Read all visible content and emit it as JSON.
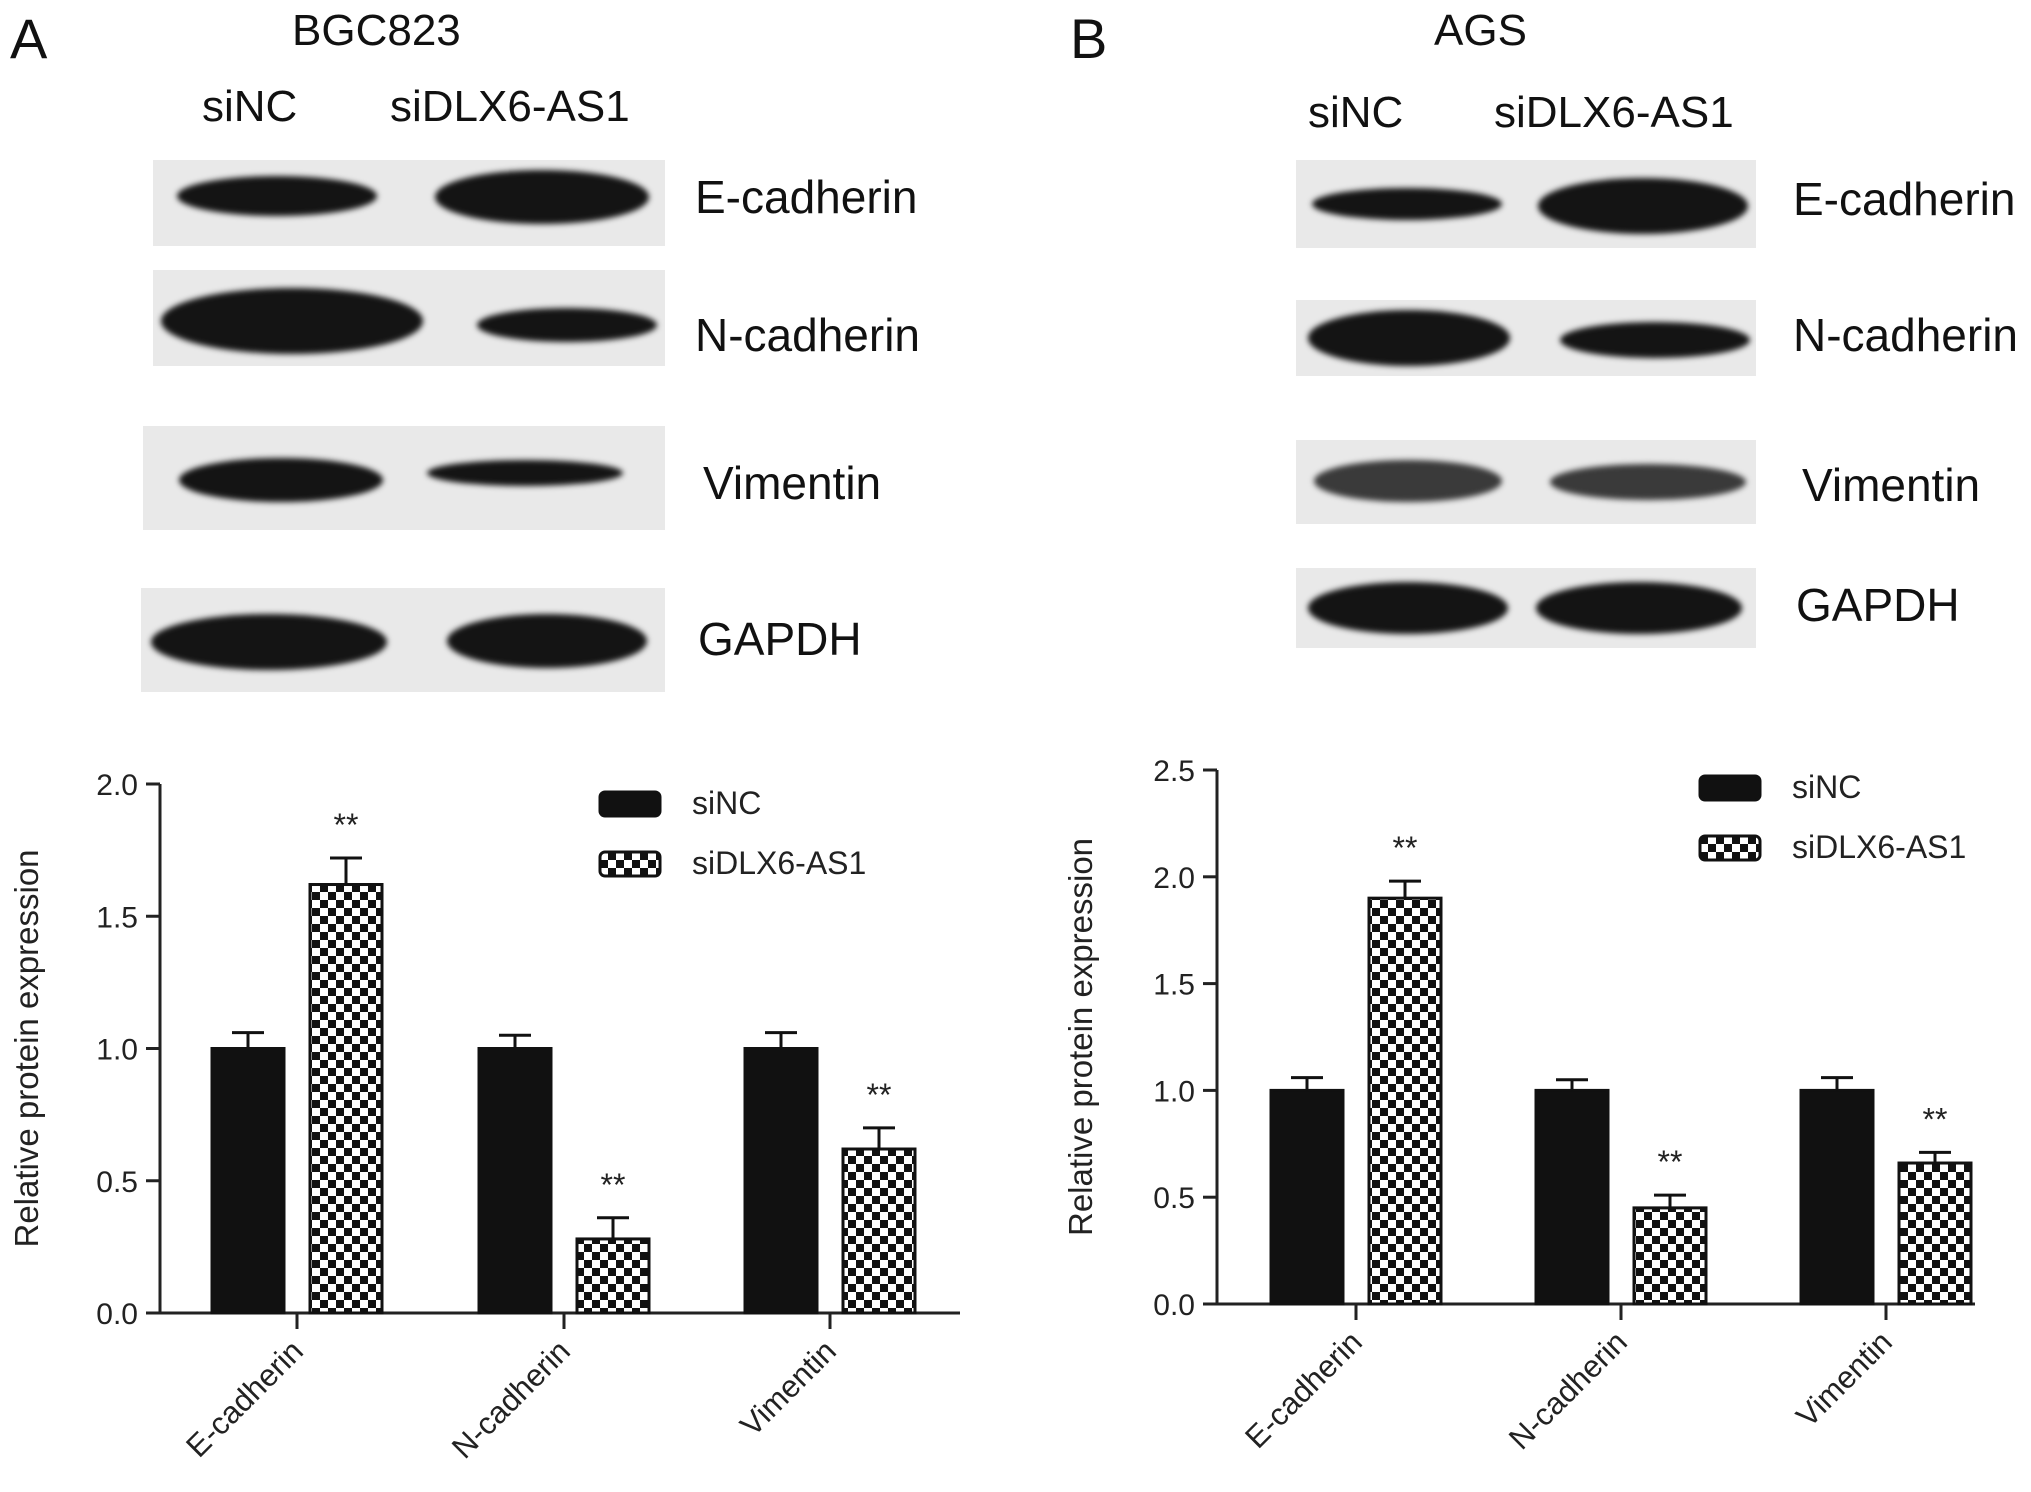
{
  "panels": [
    {
      "label": "A",
      "cell_line": "BGC823",
      "lanes": [
        "siNC",
        "siDLX6-AS1"
      ],
      "blots": [
        {
          "protein": "E-cadherin"
        },
        {
          "protein": "N-cadherin"
        },
        {
          "protein": "Vimentin"
        },
        {
          "protein": "GAPDH"
        }
      ]
    },
    {
      "label": "B",
      "cell_line": "AGS",
      "lanes": [
        "siNC",
        "siDLX6-AS1"
      ],
      "blots": [
        {
          "protein": "E-cadherin"
        },
        {
          "protein": "N-cadherin"
        },
        {
          "protein": "Vimentin"
        },
        {
          "protein": "GAPDH"
        }
      ]
    }
  ],
  "chart_data": [
    {
      "type": "bar",
      "ylabel": "Relative protein expression",
      "ylim": [
        0,
        2.0
      ],
      "yticks": [
        "0.0",
        "0.5",
        "1.0",
        "1.5",
        "2.0"
      ],
      "categories": [
        "E-cadherin",
        "N-cadherin",
        "Vimentin"
      ],
      "legend_placement": "top-right",
      "series": [
        {
          "name": "siNC",
          "values": [
            1.0,
            1.0,
            1.0
          ],
          "errors": [
            0.06,
            0.05,
            0.06
          ],
          "pattern": "solid"
        },
        {
          "name": "siDLX6-AS1",
          "values": [
            1.62,
            0.28,
            0.62
          ],
          "errors": [
            0.1,
            0.08,
            0.08
          ],
          "pattern": "checker"
        }
      ],
      "annotations": [
        {
          "series": 1,
          "category": 0,
          "text": "**"
        },
        {
          "series": 1,
          "category": 1,
          "text": "**"
        },
        {
          "series": 1,
          "category": 2,
          "text": "**"
        }
      ]
    },
    {
      "type": "bar",
      "ylabel": "Relative protein expression",
      "ylim": [
        0,
        2.5
      ],
      "yticks": [
        "0.0",
        "0.5",
        "1.0",
        "1.5",
        "2.0",
        "2.5"
      ],
      "categories": [
        "E-cadherin",
        "N-cadherin",
        "Vimentin"
      ],
      "legend_placement": "top-right",
      "series": [
        {
          "name": "siNC",
          "values": [
            1.0,
            1.0,
            1.0
          ],
          "errors": [
            0.06,
            0.05,
            0.06
          ],
          "pattern": "solid"
        },
        {
          "name": "siDLX6-AS1",
          "values": [
            1.9,
            0.45,
            0.66
          ],
          "errors": [
            0.08,
            0.06,
            0.05
          ],
          "pattern": "checker"
        }
      ],
      "annotations": [
        {
          "series": 1,
          "category": 0,
          "text": "**"
        },
        {
          "series": 1,
          "category": 1,
          "text": "**"
        },
        {
          "series": 1,
          "category": 2,
          "text": "**"
        }
      ]
    }
  ]
}
